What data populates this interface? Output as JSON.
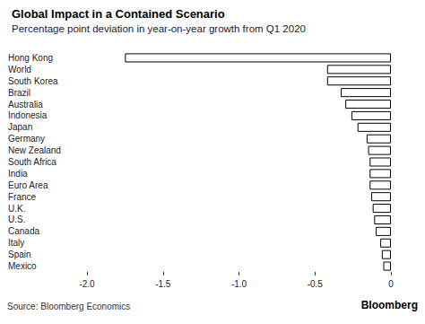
{
  "chart_data": {
    "type": "bar",
    "title": "Global Impact in a Contained Scenario",
    "subtitle": "Percentage point deviation in year-on-year growth from Q1 2020",
    "source": "Source: Bloomberg Economics",
    "credit": "Bloomberg",
    "orientation": "horizontal",
    "categories": [
      "Hong Kong",
      "World",
      "South Korea",
      "Brazil",
      "Australia",
      "Indonesia",
      "Japan",
      "Germany",
      "New Zealand",
      "South Africa",
      "India",
      "Euro Area",
      "France",
      "U.K.",
      "U.S.",
      "Canada",
      "Italy",
      "Spain",
      "Mexico"
    ],
    "values": [
      -1.75,
      -0.42,
      -0.42,
      -0.33,
      -0.3,
      -0.26,
      -0.22,
      -0.16,
      -0.15,
      -0.14,
      -0.14,
      -0.14,
      -0.13,
      -0.12,
      -0.11,
      -0.1,
      -0.07,
      -0.06,
      -0.05
    ],
    "color": "#ffffff",
    "xlim": [
      -2,
      0
    ],
    "xticks": [
      {
        "value": -2,
        "label": "-2.0"
      },
      -1.5,
      {
        "value": -1,
        "label": "-1.0"
      },
      -0.5,
      0
    ],
    "grid": false
  }
}
